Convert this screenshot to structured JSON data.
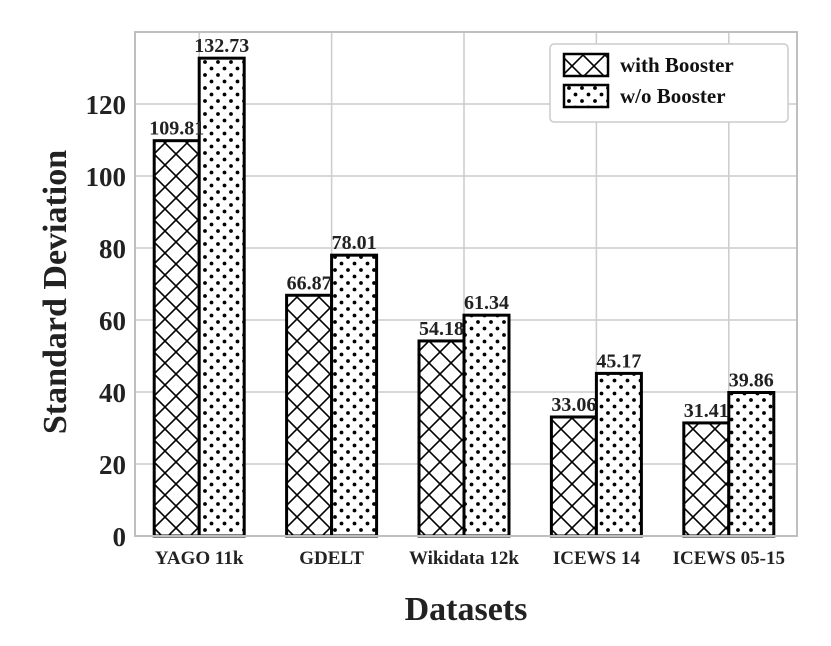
{
  "chart_data": {
    "type": "bar",
    "categories": [
      "YAGO 11k",
      "GDELT",
      "Wikidata 12k",
      "ICEWS 14",
      "ICEWS 05-15"
    ],
    "series": [
      {
        "name": "with Booster",
        "values": [
          109.81,
          66.87,
          54.18,
          33.06,
          31.41
        ],
        "pattern": "crosshatch"
      },
      {
        "name": "w/o Booster",
        "values": [
          132.73,
          78.01,
          61.34,
          45.17,
          39.86
        ],
        "pattern": "dots"
      }
    ],
    "value_labels": [
      [
        "109.81",
        "66.87",
        "54.18",
        "33.06",
        "31.41"
      ],
      [
        "132.73",
        "78.01",
        "61.34",
        "45.17",
        "39.86"
      ]
    ],
    "xlabel": "Datasets",
    "ylabel": "Standard Deviation",
    "ylim": [
      0,
      140
    ],
    "yticks": [
      0,
      20,
      40,
      60,
      80,
      100,
      120
    ],
    "grid": true,
    "legend_position": "top-right",
    "colors": {
      "bar_fill": "#ffffff",
      "bar_edge": "#000000",
      "grid": "#cccccc",
      "frame": "#bfbfbf"
    }
  }
}
